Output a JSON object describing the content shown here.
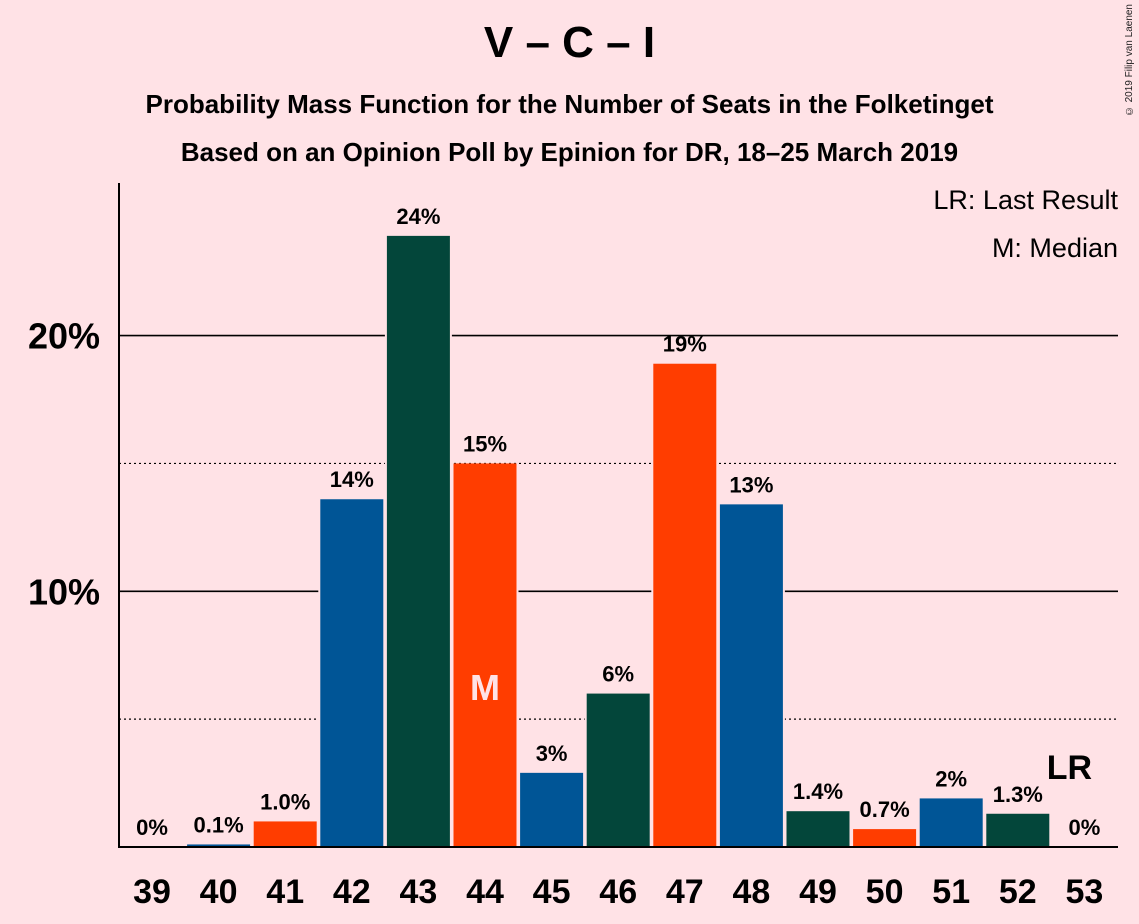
{
  "title": "V – C – I",
  "subtitle_line1": "Probability Mass Function for the Number of Seats in the Folketinget",
  "subtitle_line2": "Based on an Opinion Poll by Epinion for DR, 18–25 March 2019",
  "copyright": "© 2019 Filip van Laenen",
  "legend": {
    "last_result": "LR: Last Result",
    "median": "M: Median"
  },
  "markers": {
    "median": "M",
    "last_result": "LR"
  },
  "colors": {
    "background": "#FFE2E6",
    "blue": "#005596",
    "green": "#03463A",
    "red": "#FF3D00"
  },
  "chart_data": {
    "type": "bar",
    "categories": [
      "39",
      "40",
      "41",
      "42",
      "43",
      "44",
      "45",
      "46",
      "47",
      "48",
      "49",
      "50",
      "51",
      "52",
      "53"
    ],
    "values": [
      0,
      0.1,
      1.0,
      13.6,
      23.9,
      15.0,
      2.9,
      6.0,
      18.9,
      13.4,
      1.4,
      0.7,
      1.9,
      1.3,
      0
    ],
    "labels": [
      "0%",
      "0.1%",
      "1.0%",
      "14%",
      "24%",
      "15%",
      "3%",
      "6%",
      "19%",
      "13%",
      "1.4%",
      "0.7%",
      "2%",
      "1.3%",
      "0%"
    ],
    "bar_colors": [
      "red",
      "blue",
      "red",
      "blue",
      "green",
      "red",
      "blue",
      "green",
      "red",
      "blue",
      "green",
      "red",
      "blue",
      "green",
      "red"
    ],
    "median_category": "44",
    "last_result_category": "53",
    "ylim": [
      0,
      26
    ],
    "yticks": [
      {
        "value": 10,
        "label": "10%"
      },
      {
        "value": 20,
        "label": "20%"
      }
    ],
    "dotted_gridlines": [
      5,
      15
    ],
    "xlabel": "",
    "ylabel": ""
  }
}
